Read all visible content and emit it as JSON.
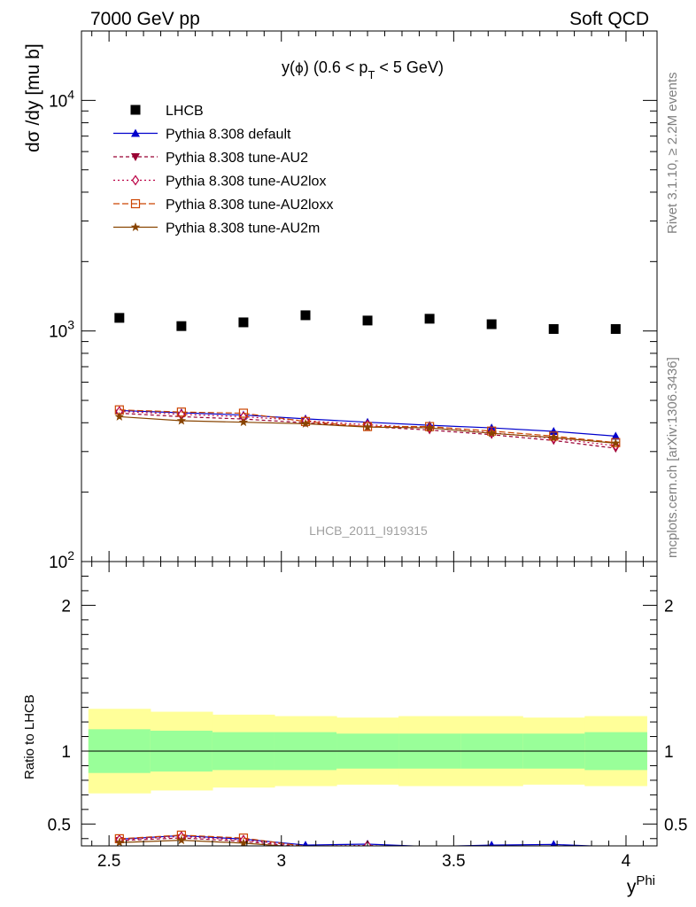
{
  "header": {
    "left": "7000 GeV pp",
    "right": "Soft QCD"
  },
  "side_labels": {
    "top": "Rivet 3.1.10, ≥ 2.2M events",
    "bottom": "mcplots.cern.ch [arXiv:1306.3436]"
  },
  "chart_data": {
    "type": "line",
    "title_main": "y(",
    "title_phi": "ϕ",
    "title_range": ") (0.6 < p",
    "title_sub": "T",
    "title_end": " < 5 GeV)",
    "watermark": "LHCB_2011_I919315",
    "xlabel_base": "y",
    "xlabel_sup": "Phi",
    "ylabel": "dσ /dy [mu b]",
    "ratio_ylabel": "Ratio to LHCB",
    "xlim": [
      2.42,
      4.09
    ],
    "ylim": [
      100,
      20000
    ],
    "ylog": true,
    "ratio_ylim": [
      0.35,
      2.3
    ],
    "x_ticks": [
      {
        "v": 2.5,
        "label": "2.5"
      },
      {
        "v": 3.0,
        "label": "3"
      },
      {
        "v": 3.5,
        "label": "3.5"
      },
      {
        "v": 4.0,
        "label": "4"
      }
    ],
    "y_ticks": [
      {
        "v": 100,
        "base": "10",
        "exp": "2"
      },
      {
        "v": 1000,
        "base": "10",
        "exp": "3"
      },
      {
        "v": 10000,
        "base": "10",
        "exp": "4"
      }
    ],
    "ratio_ticks": [
      {
        "v": 0.5,
        "label": "0.5"
      },
      {
        "v": 1.0,
        "label": "1"
      },
      {
        "v": 2.0,
        "label": "2"
      }
    ],
    "bins": [
      2.44,
      2.62,
      2.8,
      2.98,
      3.16,
      3.34,
      3.52,
      3.7,
      3.88,
      4.06
    ],
    "x": [
      2.53,
      2.71,
      2.89,
      3.07,
      3.25,
      3.43,
      3.61,
      3.79,
      3.97
    ],
    "data": {
      "name": "LHCB",
      "values": [
        1140,
        1050,
        1090,
        1170,
        1110,
        1130,
        1070,
        1020,
        1020
      ]
    },
    "band_green": [
      0.15,
      0.14,
      0.13,
      0.13,
      0.12,
      0.12,
      0.12,
      0.12,
      0.13
    ],
    "band_yellow": [
      0.29,
      0.27,
      0.25,
      0.24,
      0.23,
      0.24,
      0.24,
      0.23,
      0.24
    ],
    "series": [
      {
        "name": "Pythia 8.308 default",
        "color": "#0000cc",
        "dash": "",
        "marker": "triangle-up",
        "values": [
          452,
          442,
          432,
          416,
          402,
          390,
          380,
          367,
          350
        ]
      },
      {
        "name": "Pythia 8.308 tune-AU2",
        "color": "#990033",
        "dash": "4,3",
        "marker": "triangle-down",
        "values": [
          440,
          425,
          415,
          400,
          385,
          372,
          355,
          335,
          310
        ]
      },
      {
        "name": "Pythia 8.308 tune-AU2lox",
        "color": "#bb0044",
        "dash": "2,3",
        "marker": "diamond",
        "values": [
          448,
          435,
          425,
          408,
          392,
          380,
          362,
          342,
          318
        ]
      },
      {
        "name": "Pythia 8.308 tune-AU2loxx",
        "color": "#cc4400",
        "dash": "7,3",
        "marker": "square-open",
        "values": [
          455,
          445,
          440,
          405,
          385,
          385,
          368,
          350,
          328
        ]
      },
      {
        "name": "Pythia 8.308 tune-AU2m",
        "color": "#884400",
        "dash": "",
        "marker": "star",
        "values": [
          425,
          408,
          402,
          396,
          383,
          380,
          360,
          345,
          326
        ]
      }
    ]
  }
}
